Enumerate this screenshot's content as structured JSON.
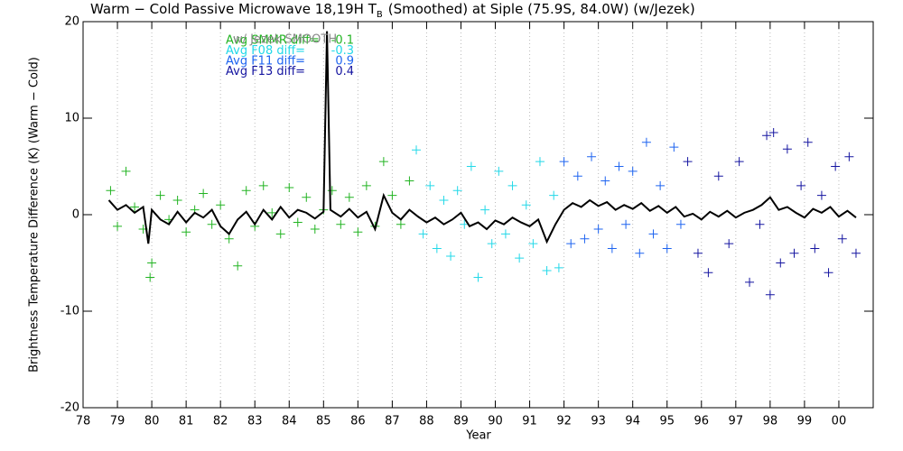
{
  "chart_data": {
    "type": "scatter",
    "title": [
      "Warm − Cold Passive Microwave 18,19H T",
      "B",
      "(Smoothed) at Siple (75.9S, 84.0W) (w/Jezek)"
    ],
    "xlabel": "Year",
    "ylabel": "Brightness Temperature Difference (K) (Warm − Cold)",
    "xlim": [
      78,
      101
    ],
    "ylim": [
      -20,
      20
    ],
    "xticks": [
      78,
      79,
      80,
      81,
      82,
      83,
      84,
      85,
      86,
      87,
      88,
      89,
      90,
      91,
      92,
      93,
      94,
      95,
      96,
      97,
      98,
      99,
      {
        "value": 100,
        "label": "00"
      }
    ],
    "yticks": [
      -20,
      -10,
      0,
      10,
      20
    ],
    "grid": true,
    "annotation": "w/ Jezek SMOOTH",
    "series": [
      {
        "name": "Avg SMMR diff=",
        "avg_diff": -0.1,
        "color": "#22b422",
        "x": [
          78.8,
          79.0,
          79.25,
          79.5,
          79.75,
          79.95,
          80.0,
          80.25,
          80.5,
          80.75,
          81.0,
          81.25,
          81.5,
          81.75,
          82.0,
          82.25,
          82.5,
          82.75,
          83.0,
          83.25,
          83.5,
          83.75,
          84.0,
          84.25,
          84.5,
          84.75,
          85.0,
          85.25,
          85.5,
          85.75,
          86.0,
          86.25,
          86.5,
          86.75,
          87.0,
          87.25,
          87.5
        ],
        "values": [
          2.5,
          -1.2,
          4.5,
          0.8,
          -1.5,
          -6.5,
          -5,
          2,
          -0.5,
          1.5,
          -1.8,
          0.5,
          2.2,
          -1,
          1,
          -2.5,
          -5.3,
          2.5,
          -1.2,
          3,
          0.2,
          -2,
          2.8,
          -0.8,
          1.8,
          -1.5,
          0.5,
          2.5,
          -1,
          1.8,
          -1.8,
          3,
          -1.2,
          5.5,
          2,
          -1,
          3.5
        ]
      },
      {
        "name": "Avg F08 diff=",
        "avg_diff": -0.3,
        "color": "#22d8e8",
        "x": [
          87.7,
          87.9,
          88.1,
          88.3,
          88.5,
          88.7,
          88.9,
          89.1,
          89.3,
          89.5,
          89.7,
          89.9,
          90.1,
          90.3,
          90.5,
          90.7,
          90.9,
          91.1,
          91.3,
          91.5,
          91.7,
          91.85
        ],
        "values": [
          6.7,
          -2,
          3,
          -3.5,
          1.5,
          -4.3,
          2.5,
          -1,
          5,
          -6.5,
          0.5,
          -3,
          4.5,
          -2,
          3,
          -4.5,
          1,
          -3,
          5.5,
          -5.8,
          2,
          -5.5
        ]
      },
      {
        "name": "Avg F11 diff=",
        "avg_diff": 0.9,
        "color": "#1e64f0",
        "x": [
          92.0,
          92.2,
          92.4,
          92.6,
          92.8,
          93.0,
          93.2,
          93.4,
          93.6,
          93.8,
          94.0,
          94.2,
          94.4,
          94.6,
          94.8,
          95.0,
          95.2,
          95.4
        ],
        "values": [
          5.5,
          -3,
          4,
          -2.5,
          6,
          -1.5,
          3.5,
          -3.5,
          5,
          -1,
          4.5,
          -4,
          7.5,
          -2,
          3,
          -3.5,
          7,
          -1
        ]
      },
      {
        "name": "Avg F13 diff=",
        "avg_diff": 0.4,
        "color": "#1414a0",
        "x": [
          95.6,
          95.9,
          96.2,
          96.5,
          96.8,
          97.1,
          97.4,
          97.7,
          97.9,
          98.0,
          98.1,
          98.3,
          98.5,
          98.7,
          98.9,
          99.1,
          99.3,
          99.5,
          99.7,
          99.9,
          100.1,
          100.3,
          100.5
        ],
        "values": [
          5.5,
          -4,
          -6,
          4,
          -3,
          5.5,
          -7,
          -1,
          8.2,
          -8.3,
          8.5,
          -5,
          6.8,
          -4,
          3,
          7.5,
          -3.5,
          2,
          -6,
          5,
          -2.5,
          6,
          -4
        ]
      }
    ],
    "smoothed": {
      "color": "#000000",
      "x": [
        78.75,
        79.0,
        79.25,
        79.5,
        79.75,
        79.9,
        80.0,
        80.25,
        80.5,
        80.75,
        81.0,
        81.25,
        81.5,
        81.75,
        82.0,
        82.25,
        82.5,
        82.75,
        83.0,
        83.25,
        83.5,
        83.75,
        84.0,
        84.25,
        84.5,
        84.75,
        85.0,
        85.1,
        85.2,
        85.5,
        85.75,
        86.0,
        86.25,
        86.5,
        86.75,
        87.0,
        87.25,
        87.5,
        87.75,
        88.0,
        88.25,
        88.5,
        88.75,
        89.0,
        89.25,
        89.5,
        89.75,
        90.0,
        90.25,
        90.5,
        90.75,
        91.0,
        91.25,
        91.5,
        91.75,
        92.0,
        92.25,
        92.5,
        92.75,
        93.0,
        93.25,
        93.5,
        93.75,
        94.0,
        94.25,
        94.5,
        94.75,
        95.0,
        95.25,
        95.5,
        95.75,
        96.0,
        96.25,
        96.5,
        96.75,
        97.0,
        97.25,
        97.5,
        97.75,
        98.0,
        98.25,
        98.5,
        98.75,
        99.0,
        99.25,
        99.5,
        99.75,
        100.0,
        100.25,
        100.5
      ],
      "values": [
        1.5,
        0.5,
        1.0,
        0.2,
        0.8,
        -3.0,
        0.5,
        -0.5,
        -1.0,
        0.3,
        -0.8,
        0.2,
        -0.3,
        0.5,
        -1.2,
        -2.0,
        -0.5,
        0.3,
        -1.0,
        0.5,
        -0.5,
        0.8,
        -0.3,
        0.5,
        0.2,
        -0.4,
        0.3,
        19.0,
        0.5,
        -0.2,
        0.6,
        -0.3,
        0.3,
        -1.5,
        2.0,
        0.2,
        -0.5,
        0.5,
        -0.2,
        -0.8,
        -0.3,
        -1.0,
        -0.5,
        0.2,
        -1.2,
        -0.8,
        -1.5,
        -0.6,
        -1.0,
        -0.3,
        -0.8,
        -1.2,
        -0.5,
        -2.8,
        -1.0,
        0.5,
        1.2,
        0.8,
        1.5,
        0.9,
        1.3,
        0.5,
        1.0,
        0.6,
        1.2,
        0.4,
        0.9,
        0.2,
        0.8,
        -0.2,
        0.1,
        -0.5,
        0.3,
        -0.2,
        0.4,
        -0.3,
        0.2,
        0.5,
        1.0,
        1.8,
        0.5,
        0.8,
        0.2,
        -0.3,
        0.6,
        0.2,
        0.8,
        -0.2,
        0.4,
        -0.3
      ]
    }
  }
}
